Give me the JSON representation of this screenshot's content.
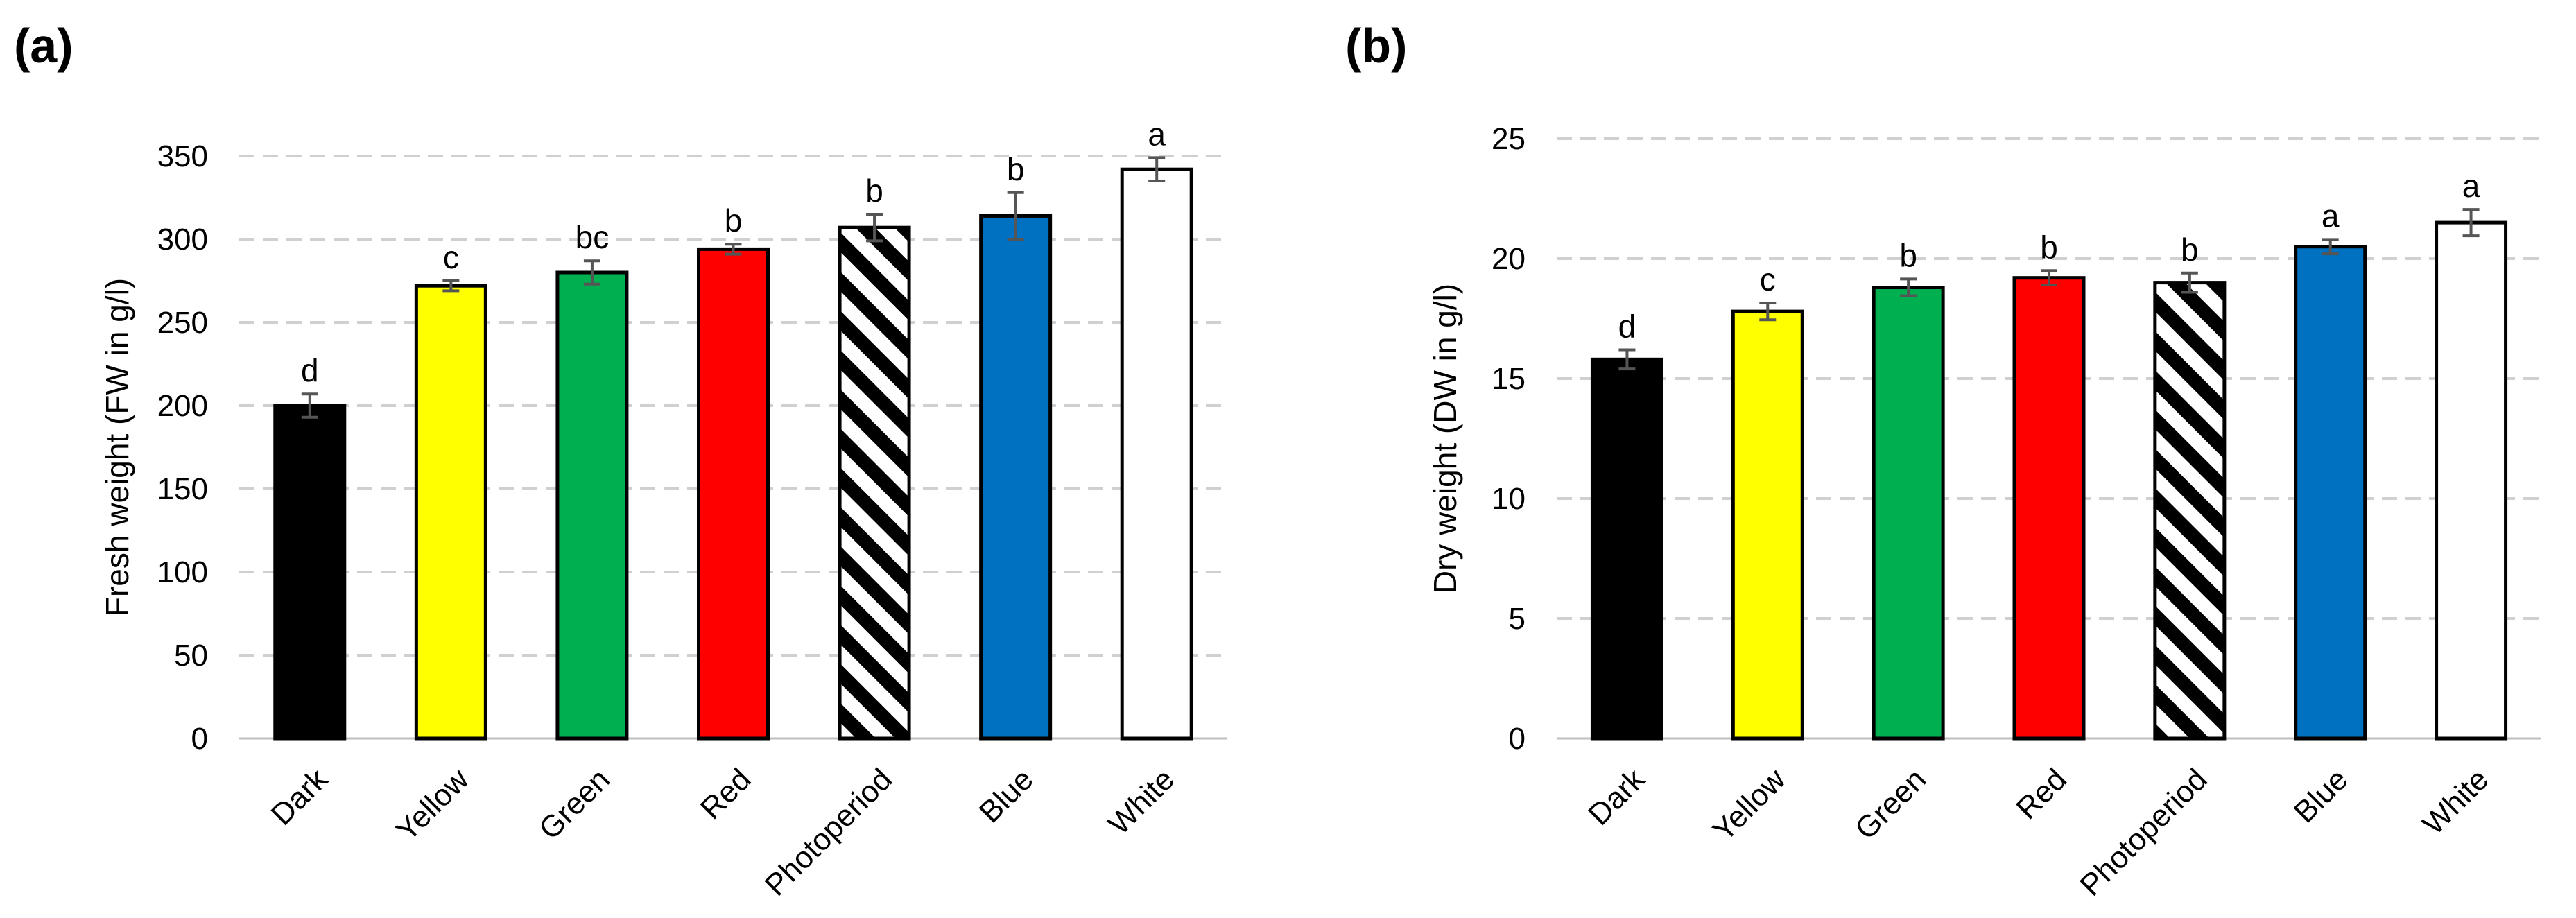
{
  "chart_data": [
    {
      "type": "bar",
      "panel_label": "(a)",
      "title": "",
      "xlabel": "",
      "ylabel": "Fresh weight (FW in g/l)",
      "ylim": [
        0,
        350
      ],
      "yticks": [
        0,
        50,
        100,
        150,
        200,
        250,
        300,
        350
      ],
      "grid": true,
      "categories": [
        "Dark",
        "Yellow",
        "Green",
        "Red",
        "Photoperiod",
        "Blue",
        "White"
      ],
      "values": [
        200,
        272,
        280,
        294,
        307,
        314,
        342
      ],
      "errors": [
        7,
        3,
        7,
        3,
        8,
        14,
        7
      ],
      "significance": [
        "d",
        "c",
        "bc",
        "b",
        "b",
        "b",
        "a"
      ],
      "colors": [
        "#000000",
        "#ffff00",
        "#00b050",
        "#ff0000",
        "hatch",
        "#0070c0",
        "#ffffff"
      ]
    },
    {
      "type": "bar",
      "panel_label": "(b)",
      "title": "",
      "xlabel": "",
      "ylabel": "Dry weight (DW in g/l)",
      "ylim": [
        0,
        25
      ],
      "yticks": [
        0,
        5,
        10,
        15,
        20,
        25
      ],
      "grid": true,
      "categories": [
        "Dark",
        "Yellow",
        "Green",
        "Red",
        "Photoperiod",
        "Blue",
        "White"
      ],
      "values": [
        15.8,
        17.8,
        18.8,
        19.2,
        19.0,
        20.5,
        21.5
      ],
      "errors": [
        0.4,
        0.35,
        0.35,
        0.3,
        0.4,
        0.3,
        0.55
      ],
      "significance": [
        "d",
        "c",
        "b",
        "b",
        "b",
        "a",
        "a"
      ],
      "colors": [
        "#000000",
        "#ffff00",
        "#00b050",
        "#ff0000",
        "hatch",
        "#0070c0",
        "#ffffff"
      ]
    }
  ]
}
